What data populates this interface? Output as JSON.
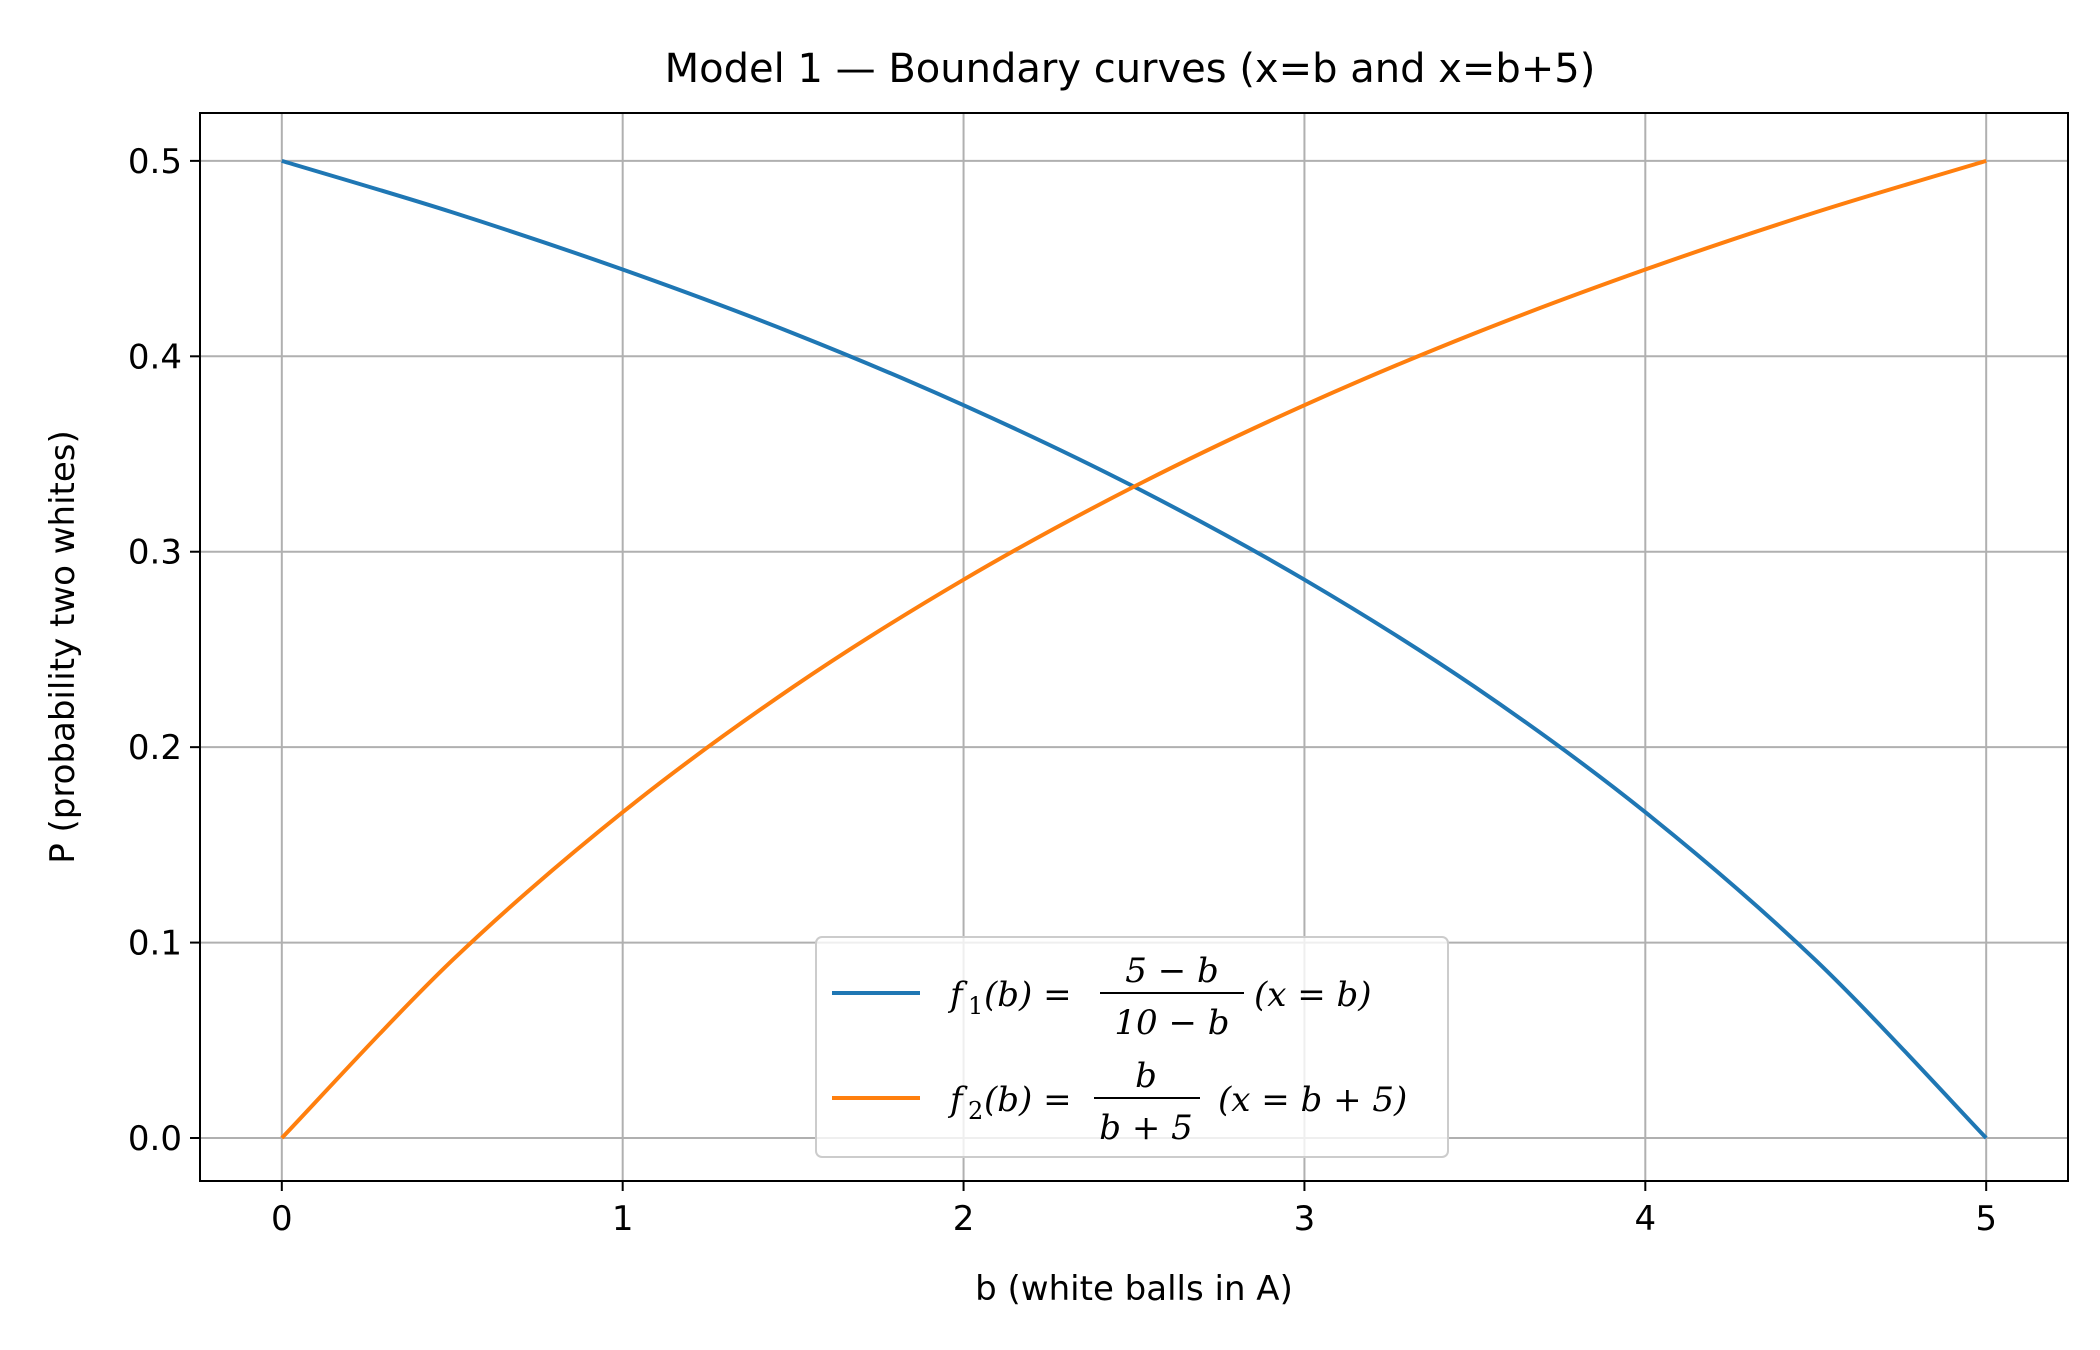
{
  "chart_data": {
    "type": "line",
    "title": "Model 1 — Boundary curves (x=b and x=b+5)",
    "xlabel": "b (white balls in A)",
    "ylabel": "P (probability two whites)",
    "xlim": [
      -0.24,
      5.24
    ],
    "ylim": [
      -0.022,
      0.5245
    ],
    "xticks": [
      0,
      1,
      2,
      3,
      4,
      5
    ],
    "xtick_labels": [
      "0",
      "1",
      "2",
      "3",
      "4",
      "5"
    ],
    "yticks": [
      0.0,
      0.1,
      0.2,
      0.3,
      0.4,
      0.5
    ],
    "ytick_labels": [
      "0.0",
      "0.1",
      "0.2",
      "0.3",
      "0.4",
      "0.5"
    ],
    "grid": true,
    "legend_position": "lower-center",
    "x": [
      0,
      0.5,
      1,
      1.5,
      2,
      2.5,
      3,
      3.5,
      4,
      4.5,
      5
    ],
    "series": [
      {
        "name": "f1(b) = (5 − b)/(10 − b)  (x = b)",
        "color": "#1f77b4",
        "values": [
          0.5,
          0.4737,
          0.4444,
          0.4118,
          0.375,
          0.3333,
          0.2857,
          0.2308,
          0.1667,
          0.0909,
          0.0
        ]
      },
      {
        "name": "f2(b) = b/(b + 5)  (x = b + 5)",
        "color": "#ff7f0e",
        "values": [
          0.0,
          0.0909,
          0.1667,
          0.2308,
          0.2857,
          0.3333,
          0.375,
          0.4118,
          0.4444,
          0.4737,
          0.5
        ]
      }
    ],
    "legend": [
      {
        "lhs": "f",
        "sub": "1",
        "arg": "(b) =",
        "num": "5 − b",
        "den": "10 − b",
        "tail": "(x = b)"
      },
      {
        "lhs": "f",
        "sub": "2",
        "arg": "(b) =",
        "num": "b",
        "den": "b + 5",
        "tail": "(x = b + 5)"
      }
    ]
  }
}
